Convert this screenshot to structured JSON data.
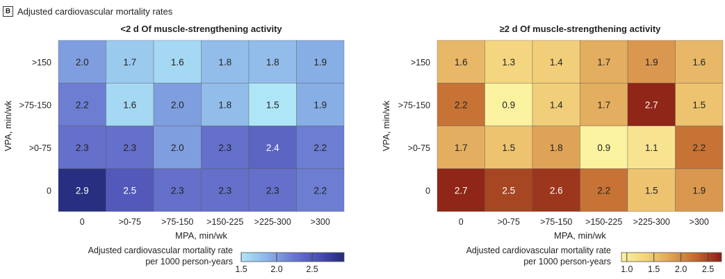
{
  "figure": {
    "panel": "B",
    "title": "Adjusted cardiovascular mortality rates"
  },
  "chart_data": [
    {
      "type": "heatmap",
      "title": "<2 d Of muscle-strengthening activity",
      "xlabel": "MPA, min/wk",
      "ylabel": "VPA, min/wk",
      "x_categories": [
        "0",
        ">0-75",
        ">75-150",
        ">150-225",
        ">225-300",
        ">300"
      ],
      "y_categories": [
        ">150",
        ">75-150",
        ">0-75",
        "0"
      ],
      "values": [
        [
          2.0,
          1.7,
          1.6,
          1.8,
          1.8,
          1.9
        ],
        [
          2.2,
          1.6,
          2.0,
          1.8,
          1.5,
          1.9
        ],
        [
          2.3,
          2.3,
          2.0,
          2.3,
          2.4,
          2.2
        ],
        [
          2.9,
          2.5,
          2.3,
          2.3,
          2.3,
          2.2
        ]
      ],
      "colorscale": [
        "#aee6f7",
        "#8cb4e8",
        "#6a79d0",
        "#4c4fb4",
        "#222a78"
      ],
      "colorbar": {
        "title_lines": [
          "Adjusted cardiovascular mortality rate",
          "per 1000 person-years"
        ],
        "range": [
          1.5,
          2.95
        ],
        "ticks": [
          1.5,
          2.0,
          2.5
        ],
        "tick_labels": [
          "1.5",
          "2.0",
          "2.5"
        ]
      }
    },
    {
      "type": "heatmap",
      "title": "≥2 d Of muscle-strengthening activity",
      "xlabel": "MPA, min/wk",
      "ylabel": "VPA, min/wk",
      "x_categories": [
        "0",
        ">0-75",
        ">75-150",
        ">150-225",
        ">225-300",
        ">300"
      ],
      "y_categories": [
        ">150",
        ">75-150",
        ">0-75",
        "0"
      ],
      "values": [
        [
          1.6,
          1.3,
          1.4,
          1.7,
          1.9,
          1.6
        ],
        [
          2.2,
          0.9,
          1.4,
          1.7,
          2.7,
          1.5
        ],
        [
          1.7,
          1.5,
          1.8,
          0.9,
          1.1,
          2.2
        ],
        [
          2.7,
          2.5,
          2.6,
          2.2,
          1.5,
          1.9
        ]
      ],
      "colorscale": [
        "#fbf2a0",
        "#f3d27c",
        "#dea055",
        "#c0682e",
        "#8a1e14"
      ],
      "colorbar": {
        "title_lines": [
          "Adjusted cardiovascular mortality rate",
          "per 1000 person-years"
        ],
        "range": [
          0.9,
          2.75
        ],
        "ticks": [
          1.0,
          1.5,
          2.0,
          2.5
        ],
        "tick_labels": [
          "1.0",
          "1.5",
          "2.0",
          "2.5"
        ]
      }
    }
  ]
}
